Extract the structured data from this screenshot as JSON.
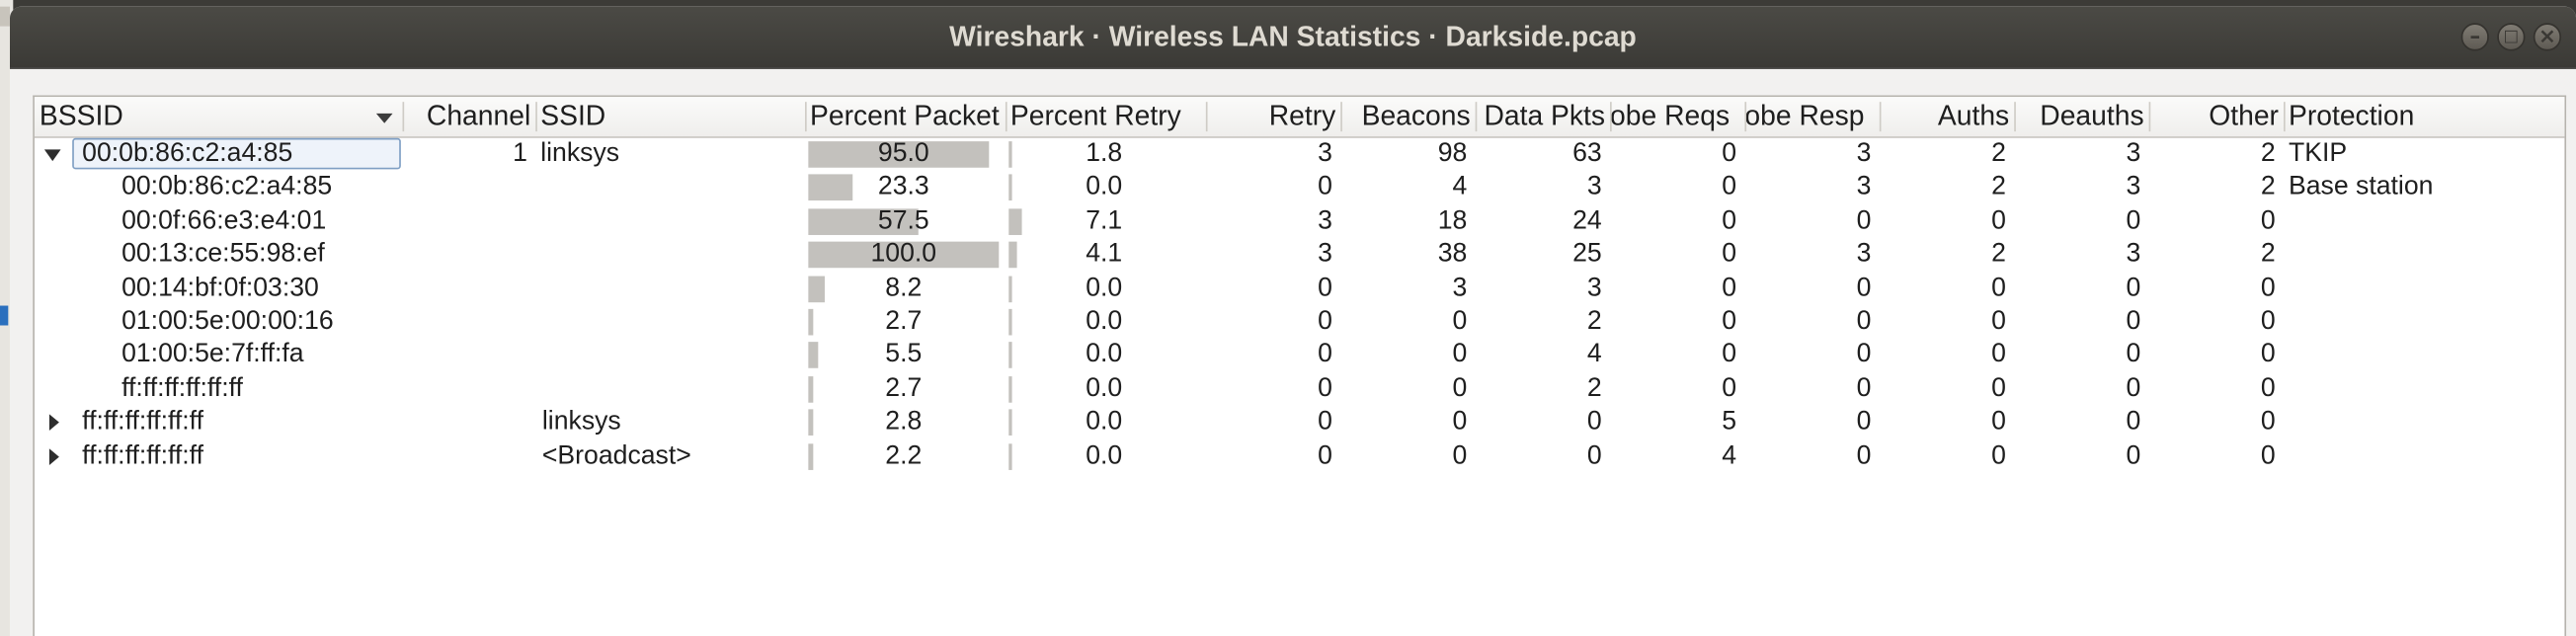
{
  "window": {
    "title": "Wireshark · Wireless LAN Statistics · Darkside.pcap",
    "controls": [
      "minimize",
      "maximize",
      "close"
    ]
  },
  "desktop_edge_marks": [
    "3",
    "2",
    "0"
  ],
  "columns": [
    "BSSID",
    "Channel",
    "SSID",
    "Percent Packets",
    "Percent Retry",
    "Retry",
    "Beacons",
    "Data Pkts",
    "Probe Reqs",
    "Probe Resp",
    "Auths",
    "Deauths",
    "Other",
    "Protection"
  ],
  "header_labels": {
    "bssid": "BSSID",
    "channel": "Channel",
    "ssid": "SSID",
    "pct_packets": "Percent Packet",
    "pct_retry": "Percent Retry",
    "retry": "Retry",
    "beacons": "Beacons",
    "data_pkts": "Data Pkts",
    "probe_reqs": "obe Reqs",
    "probe_resp": "obe Resp",
    "auths": "Auths",
    "deauths": "Deauths",
    "other": "Other",
    "protection": "Protection"
  },
  "rows": [
    {
      "level": 0,
      "expander": "open",
      "selected": true,
      "bssid": "00:0b:86:c2:a4:85",
      "channel": "1",
      "ssid": "linksys",
      "pct_packets": 95.0,
      "pct_packets_label": "95.0",
      "pct_retry": 1.8,
      "pct_retry_label": "1.8",
      "retry": "3",
      "beacons": "98",
      "data_pkts": "63",
      "probe_reqs": "0",
      "probe_resp": "3",
      "auths": "2",
      "deauths": "3",
      "other": "2",
      "protection": "TKIP"
    },
    {
      "level": 1,
      "expander": "",
      "selected": false,
      "bssid": "00:0b:86:c2:a4:85",
      "channel": "",
      "ssid": "",
      "pct_packets": 23.3,
      "pct_packets_label": "23.3",
      "pct_retry": 0.0,
      "pct_retry_label": "0.0",
      "retry": "0",
      "beacons": "4",
      "data_pkts": "3",
      "probe_reqs": "0",
      "probe_resp": "3",
      "auths": "2",
      "deauths": "3",
      "other": "2",
      "protection": "Base station"
    },
    {
      "level": 1,
      "expander": "",
      "selected": false,
      "bssid": "00:0f:66:e3:e4:01",
      "channel": "",
      "ssid": "",
      "pct_packets": 57.5,
      "pct_packets_label": "57.5",
      "pct_retry": 7.1,
      "pct_retry_label": "7.1",
      "retry": "3",
      "beacons": "18",
      "data_pkts": "24",
      "probe_reqs": "0",
      "probe_resp": "0",
      "auths": "0",
      "deauths": "0",
      "other": "0",
      "protection": ""
    },
    {
      "level": 1,
      "expander": "",
      "selected": false,
      "bssid": "00:13:ce:55:98:ef",
      "channel": "",
      "ssid": "",
      "pct_packets": 100.0,
      "pct_packets_label": "100.0",
      "pct_retry": 4.1,
      "pct_retry_label": "4.1",
      "retry": "3",
      "beacons": "38",
      "data_pkts": "25",
      "probe_reqs": "0",
      "probe_resp": "3",
      "auths": "2",
      "deauths": "3",
      "other": "2",
      "protection": ""
    },
    {
      "level": 1,
      "expander": "",
      "selected": false,
      "bssid": "00:14:bf:0f:03:30",
      "channel": "",
      "ssid": "",
      "pct_packets": 8.2,
      "pct_packets_label": "8.2",
      "pct_retry": 0.0,
      "pct_retry_label": "0.0",
      "retry": "0",
      "beacons": "3",
      "data_pkts": "3",
      "probe_reqs": "0",
      "probe_resp": "0",
      "auths": "0",
      "deauths": "0",
      "other": "0",
      "protection": ""
    },
    {
      "level": 1,
      "expander": "",
      "selected": false,
      "bssid": "01:00:5e:00:00:16",
      "channel": "",
      "ssid": "",
      "pct_packets": 2.7,
      "pct_packets_label": "2.7",
      "pct_retry": 0.0,
      "pct_retry_label": "0.0",
      "retry": "0",
      "beacons": "0",
      "data_pkts": "2",
      "probe_reqs": "0",
      "probe_resp": "0",
      "auths": "0",
      "deauths": "0",
      "other": "0",
      "protection": ""
    },
    {
      "level": 1,
      "expander": "",
      "selected": false,
      "bssid": "01:00:5e:7f:ff:fa",
      "channel": "",
      "ssid": "",
      "pct_packets": 5.5,
      "pct_packets_label": "5.5",
      "pct_retry": 0.0,
      "pct_retry_label": "0.0",
      "retry": "0",
      "beacons": "0",
      "data_pkts": "4",
      "probe_reqs": "0",
      "probe_resp": "0",
      "auths": "0",
      "deauths": "0",
      "other": "0",
      "protection": ""
    },
    {
      "level": 1,
      "expander": "",
      "selected": false,
      "bssid": "ff:ff:ff:ff:ff:ff",
      "channel": "",
      "ssid": "",
      "pct_packets": 2.7,
      "pct_packets_label": "2.7",
      "pct_retry": 0.0,
      "pct_retry_label": "0.0",
      "retry": "0",
      "beacons": "0",
      "data_pkts": "2",
      "probe_reqs": "0",
      "probe_resp": "0",
      "auths": "0",
      "deauths": "0",
      "other": "0",
      "protection": ""
    },
    {
      "level": 0,
      "expander": "closed",
      "selected": false,
      "bssid": "ff:ff:ff:ff:ff:ff",
      "channel": "",
      "ssid": "linksys",
      "pct_packets": 2.8,
      "pct_packets_label": "2.8",
      "pct_retry": 0.0,
      "pct_retry_label": "0.0",
      "retry": "0",
      "beacons": "0",
      "data_pkts": "0",
      "probe_reqs": "5",
      "probe_resp": "0",
      "auths": "0",
      "deauths": "0",
      "other": "0",
      "protection": ""
    },
    {
      "level": 0,
      "expander": "closed",
      "selected": false,
      "bssid": "ff:ff:ff:ff:ff:ff",
      "channel": "",
      "ssid": "<Broadcast>",
      "pct_packets": 2.2,
      "pct_packets_label": "2.2",
      "pct_retry": 0.0,
      "pct_retry_label": "0.0",
      "retry": "0",
      "beacons": "0",
      "data_pkts": "0",
      "probe_reqs": "4",
      "probe_resp": "0",
      "auths": "0",
      "deauths": "0",
      "other": "0",
      "protection": ""
    }
  ],
  "colors": {
    "titlebar": "#3d3c38",
    "title_text": "#dfdbd2",
    "bar_fill": "#c3c1bd",
    "selection_border": "#7f9fc4"
  }
}
